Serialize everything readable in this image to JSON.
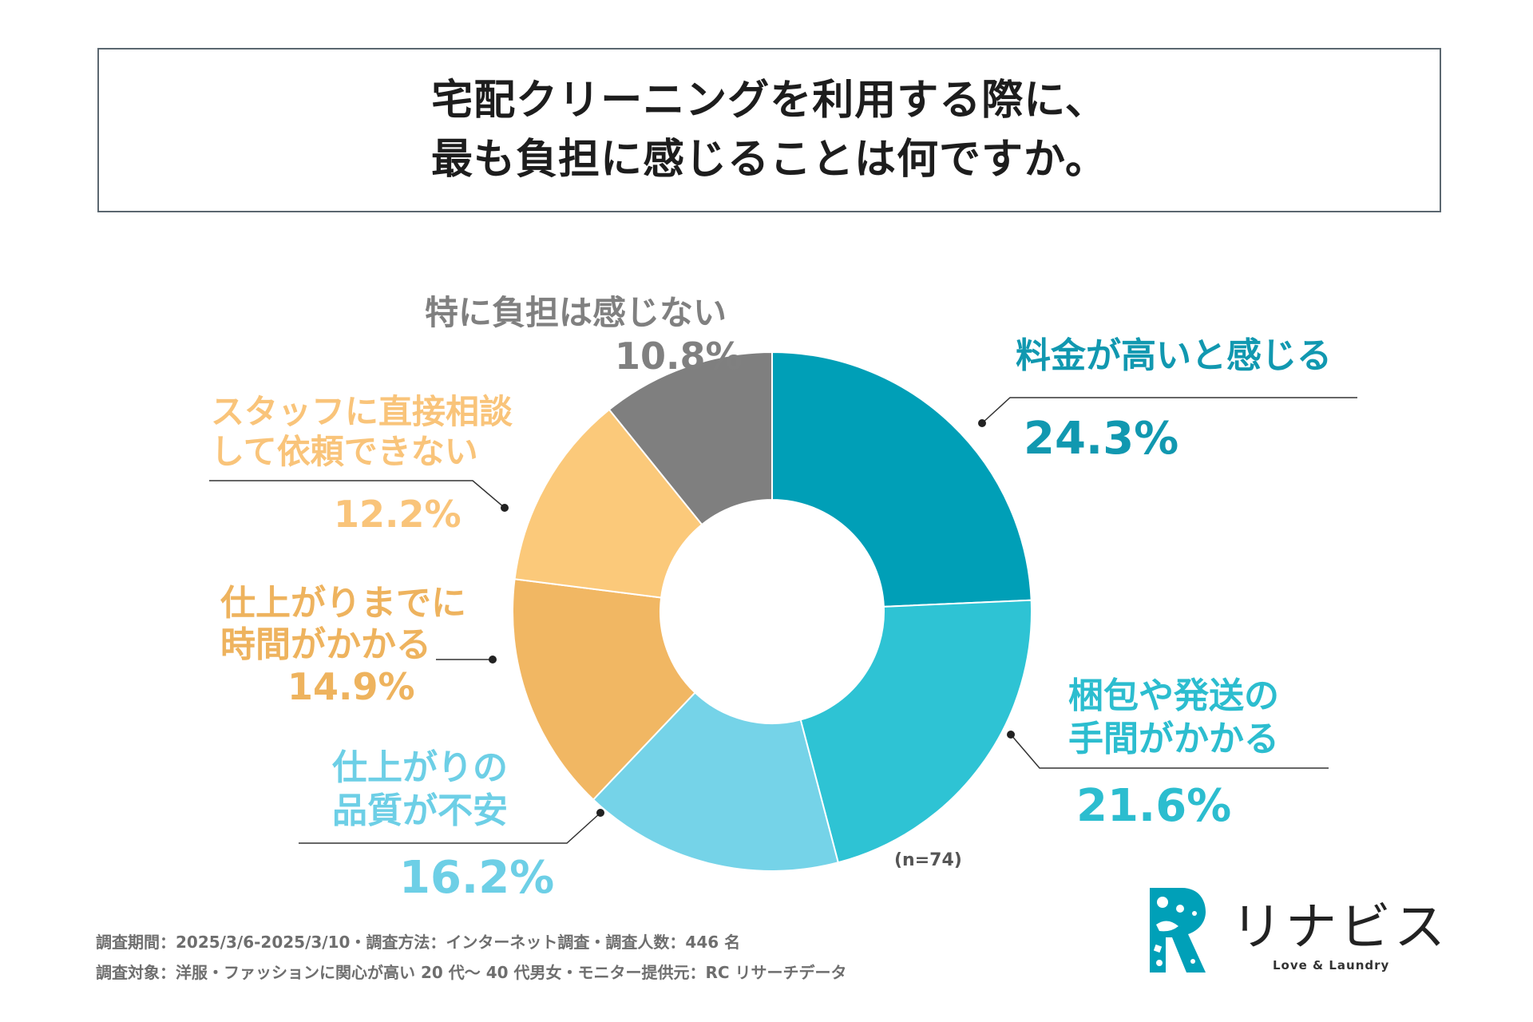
{
  "title": {
    "line1": "宅配クリーニングを利用する際に、",
    "line2": "最も負担に感じることは何ですか。"
  },
  "chart_data": {
    "type": "pie",
    "variant": "donut",
    "title": "宅配クリーニングを利用する際に、最も負担に感じることは何ですか。",
    "sample": "(n=74)",
    "slices": [
      {
        "label_lines": [
          "料金が高いと感じる"
        ],
        "value": 24.3,
        "value_text": "24.3%",
        "color": "#009fb7",
        "label_color": "#1198b0"
      },
      {
        "label_lines": [
          "梱包や発送の",
          "手間がかかる"
        ],
        "value": 21.6,
        "value_text": "21.6%",
        "color": "#2ec3d4",
        "label_color": "#2cbdcf"
      },
      {
        "label_lines": [
          "仕上がりの",
          "品質が不安"
        ],
        "value": 16.2,
        "value_text": "16.2%",
        "color": "#75d3e8",
        "label_color": "#6dcfe6"
      },
      {
        "label_lines": [
          "仕上がりまでに",
          "時間がかかる"
        ],
        "value": 14.9,
        "value_text": "14.9%",
        "color": "#f1b763",
        "label_color": "#eeb35e"
      },
      {
        "label_lines": [
          "スタッフに直接相談",
          "して依頼できない"
        ],
        "value": 12.2,
        "value_text": "12.2%",
        "color": "#fbc97a",
        "label_color": "#f9c47a"
      },
      {
        "label_lines": [
          "特に負担は感じない"
        ],
        "value": 10.8,
        "value_text": "10.8%",
        "color": "#7f7f7f",
        "label_color": "#808080"
      }
    ]
  },
  "footnotes": {
    "line1": "調査期間：2025/3/6-2025/3/10・調査方法：インターネット調査・調査人数：446 名",
    "line2": "調査対象：洋服・ファッションに関心が高い 20 代〜 40 代男女・モニター提供元：RC リサーチデータ"
  },
  "logo": {
    "name": "リナビス",
    "tagline": "Love & Laundry",
    "color": "#00a0b8"
  }
}
